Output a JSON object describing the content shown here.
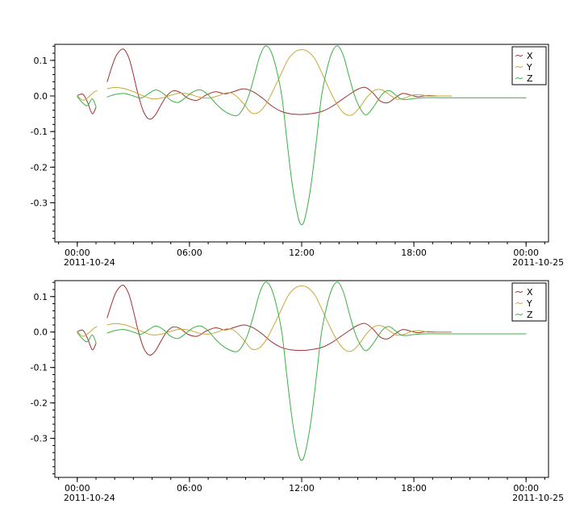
{
  "page": {
    "background": "#ffffff",
    "axes_color": "#000000"
  },
  "chart_data": [
    {
      "type": "line",
      "title": "",
      "xlabel": "",
      "ylabel": "",
      "x_unit": "time-of-day",
      "xlim": [
        -1.2,
        25.2
      ],
      "ylim": [
        -0.41,
        0.145
      ],
      "x_major_ticks": [
        {
          "hour": 0,
          "label": "00:00",
          "date": "2011-10-24"
        },
        {
          "hour": 6,
          "label": "06:00"
        },
        {
          "hour": 12,
          "label": "12:00"
        },
        {
          "hour": 18,
          "label": "18:00"
        },
        {
          "hour": 24,
          "label": "00:00",
          "date": "2011-10-25"
        }
      ],
      "x_minor_step_hours": 1,
      "y_major_ticks": [
        {
          "value": 0.1,
          "label": "0.1"
        },
        {
          "value": 0.0,
          "label": "0.0"
        },
        {
          "value": -0.1,
          "label": "-0.1"
        },
        {
          "value": -0.2,
          "label": "-0.2"
        },
        {
          "value": -0.3,
          "label": "-0.3"
        }
      ],
      "y_minor_step": 0.02,
      "legend": {
        "position": "upper-right",
        "entries": [
          {
            "label": "X",
            "color": "#a03232"
          },
          {
            "label": "Y",
            "color": "#c8a838"
          },
          {
            "label": "Z",
            "color": "#3cb044"
          }
        ]
      },
      "series": [
        {
          "name": "X",
          "color": "#a03232",
          "segments": [
            [
              [
                0.0,
                0.001
              ],
              [
                0.3,
                0.005
              ],
              [
                0.55,
                -0.018
              ],
              [
                0.8,
                -0.05
              ],
              [
                1.0,
                -0.032
              ]
            ],
            [
              [
                1.6,
                0.04
              ],
              [
                1.85,
                0.082
              ],
              [
                2.1,
                0.115
              ],
              [
                2.45,
                0.132
              ],
              [
                2.75,
                0.108
              ],
              [
                3.0,
                0.06
              ],
              [
                3.25,
                0.005
              ],
              [
                3.55,
                -0.045
              ],
              [
                3.85,
                -0.065
              ],
              [
                4.15,
                -0.055
              ],
              [
                4.45,
                -0.028
              ],
              [
                4.75,
                -0.002
              ],
              [
                5.1,
                0.014
              ],
              [
                5.5,
                0.01
              ],
              [
                5.9,
                -0.006
              ],
              [
                6.4,
                -0.012
              ],
              [
                6.9,
                0.003
              ],
              [
                7.4,
                0.012
              ],
              [
                7.9,
                0.006
              ],
              [
                8.4,
                0.013
              ],
              [
                8.9,
                0.02
              ],
              [
                9.4,
                0.012
              ],
              [
                9.9,
                -0.006
              ],
              [
                10.4,
                -0.028
              ],
              [
                10.9,
                -0.043
              ],
              [
                11.4,
                -0.05
              ],
              [
                12.0,
                -0.052
              ],
              [
                12.6,
                -0.049
              ],
              [
                13.1,
                -0.043
              ],
              [
                13.6,
                -0.03
              ],
              [
                14.1,
                -0.012
              ],
              [
                14.6,
                0.006
              ],
              [
                15.0,
                0.019
              ],
              [
                15.4,
                0.024
              ],
              [
                15.8,
                0.009
              ],
              [
                16.2,
                -0.014
              ],
              [
                16.6,
                -0.019
              ],
              [
                17.0,
                -0.005
              ],
              [
                17.4,
                0.007
              ],
              [
                17.8,
                0.003
              ],
              [
                18.2,
                -0.002
              ],
              [
                18.7,
                0.001
              ],
              [
                19.3,
                0.0
              ],
              [
                20.0,
                0.0
              ]
            ]
          ]
        },
        {
          "name": "Y",
          "color": "#c8a838",
          "segments": [
            [
              [
                0.0,
                0.001
              ],
              [
                0.3,
                -0.012
              ],
              [
                0.6,
                -0.003
              ],
              [
                0.9,
                0.011
              ],
              [
                1.05,
                0.015
              ]
            ],
            [
              [
                1.6,
                0.02
              ],
              [
                2.0,
                0.024
              ],
              [
                2.5,
                0.021
              ],
              [
                3.0,
                0.012
              ],
              [
                3.5,
                0.001
              ],
              [
                4.0,
                -0.008
              ],
              [
                4.5,
                -0.006
              ],
              [
                5.0,
                0.002
              ],
              [
                5.5,
                0.008
              ],
              [
                6.0,
                0.005
              ],
              [
                6.5,
                -0.003
              ],
              [
                7.0,
                -0.006
              ],
              [
                7.5,
                0.0
              ],
              [
                8.0,
                0.009
              ],
              [
                8.4,
                0.004
              ],
              [
                8.9,
                -0.022
              ],
              [
                9.3,
                -0.047
              ],
              [
                9.7,
                -0.046
              ],
              [
                10.1,
                -0.022
              ],
              [
                10.5,
                0.018
              ],
              [
                10.9,
                0.062
              ],
              [
                11.3,
                0.105
              ],
              [
                11.7,
                0.126
              ],
              [
                12.0,
                0.13
              ],
              [
                12.3,
                0.126
              ],
              [
                12.7,
                0.105
              ],
              [
                13.1,
                0.062
              ],
              [
                13.5,
                0.016
              ],
              [
                13.9,
                -0.024
              ],
              [
                14.3,
                -0.05
              ],
              [
                14.7,
                -0.053
              ],
              [
                15.1,
                -0.032
              ],
              [
                15.5,
                -0.003
              ],
              [
                15.9,
                0.016
              ],
              [
                16.3,
                0.017
              ],
              [
                16.7,
                0.003
              ],
              [
                17.1,
                -0.009
              ],
              [
                17.5,
                -0.006
              ],
              [
                17.9,
                0.002
              ],
              [
                18.3,
                0.004
              ],
              [
                18.7,
                0.0
              ],
              [
                19.3,
                0.0
              ],
              [
                20.0,
                0.0
              ]
            ]
          ]
        },
        {
          "name": "Z",
          "color": "#3cb044",
          "segments": [
            [
              [
                0.0,
                -0.002
              ],
              [
                0.3,
                -0.02
              ],
              [
                0.55,
                -0.027
              ],
              [
                0.8,
                -0.008
              ],
              [
                1.0,
                -0.03
              ]
            ],
            [
              [
                1.6,
                -0.003
              ],
              [
                2.0,
                0.004
              ],
              [
                2.5,
                0.007
              ],
              [
                3.0,
                0.0
              ],
              [
                3.4,
                -0.006
              ],
              [
                3.8,
                0.006
              ],
              [
                4.2,
                0.017
              ],
              [
                4.6,
                0.007
              ],
              [
                5.0,
                -0.012
              ],
              [
                5.4,
                -0.018
              ],
              [
                5.8,
                -0.004
              ],
              [
                6.2,
                0.012
              ],
              [
                6.6,
                0.017
              ],
              [
                7.0,
                0.003
              ],
              [
                7.4,
                -0.021
              ],
              [
                7.8,
                -0.04
              ],
              [
                8.2,
                -0.052
              ],
              [
                8.55,
                -0.055
              ],
              [
                8.85,
                -0.037
              ],
              [
                9.15,
                -0.002
              ],
              [
                9.45,
                0.052
              ],
              [
                9.75,
                0.11
              ],
              [
                10.05,
                0.14
              ],
              [
                10.35,
                0.126
              ],
              [
                10.65,
                0.075
              ],
              [
                10.95,
                -0.005
              ],
              [
                11.2,
                -0.12
              ],
              [
                11.5,
                -0.25
              ],
              [
                11.8,
                -0.338
              ],
              [
                12.0,
                -0.362
              ],
              [
                12.2,
                -0.338
              ],
              [
                12.5,
                -0.25
              ],
              [
                12.8,
                -0.12
              ],
              [
                13.05,
                -0.005
              ],
              [
                13.35,
                0.075
              ],
              [
                13.65,
                0.126
              ],
              [
                13.95,
                0.14
              ],
              [
                14.25,
                0.11
              ],
              [
                14.55,
                0.052
              ],
              [
                14.85,
                -0.002
              ],
              [
                15.15,
                -0.037
              ],
              [
                15.45,
                -0.053
              ],
              [
                15.8,
                -0.034
              ],
              [
                16.1,
                -0.01
              ],
              [
                16.4,
                0.01
              ],
              [
                16.7,
                0.015
              ],
              [
                17.0,
                0.004
              ],
              [
                17.3,
                -0.008
              ],
              [
                17.6,
                -0.01
              ],
              [
                18.0,
                -0.007
              ],
              [
                18.6,
                -0.005
              ],
              [
                19.4,
                -0.005
              ],
              [
                20.5,
                -0.005
              ],
              [
                22.0,
                -0.005
              ],
              [
                24.0,
                -0.005
              ]
            ]
          ]
        }
      ]
    },
    {
      "type": "line",
      "title": "",
      "xlabel": "",
      "ylabel": "",
      "x_unit": "time-of-day",
      "xlim": [
        -1.2,
        25.2
      ],
      "ylim": [
        -0.41,
        0.145
      ],
      "x_major_ticks": [
        {
          "hour": 0,
          "label": "00:00",
          "date": "2011-10-24"
        },
        {
          "hour": 6,
          "label": "06:00"
        },
        {
          "hour": 12,
          "label": "12:00"
        },
        {
          "hour": 18,
          "label": "18:00"
        },
        {
          "hour": 24,
          "label": "00:00",
          "date": "2011-10-25"
        }
      ],
      "x_minor_step_hours": 1,
      "y_major_ticks": [
        {
          "value": 0.1,
          "label": "0.1"
        },
        {
          "value": 0.0,
          "label": "0.0"
        },
        {
          "value": -0.1,
          "label": "-0.1"
        },
        {
          "value": -0.2,
          "label": "-0.2"
        },
        {
          "value": -0.3,
          "label": "-0.3"
        }
      ],
      "y_minor_step": 0.02,
      "legend": {
        "position": "upper-right",
        "entries": [
          {
            "label": "X",
            "color": "#a03232"
          },
          {
            "label": "Y",
            "color": "#c8a838"
          },
          {
            "label": "Z",
            "color": "#3cb044"
          }
        ]
      },
      "series_same_as": 0
    }
  ]
}
